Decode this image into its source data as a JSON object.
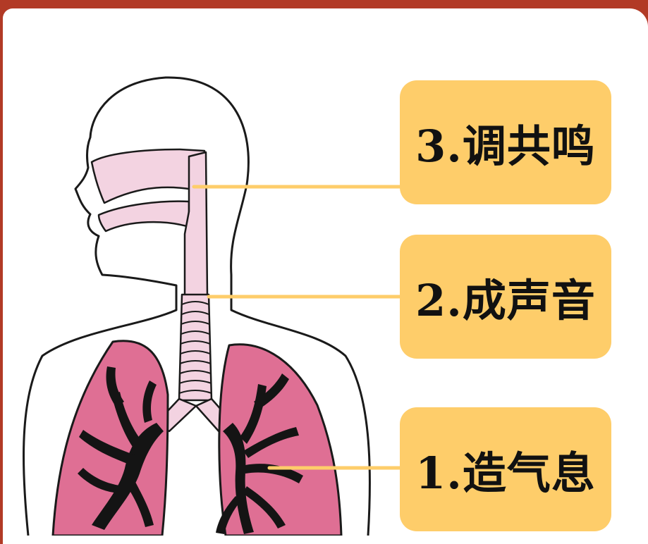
{
  "labels": {
    "resonance": "3.调共鸣",
    "voice": "2.成声音",
    "breath": "1.造气息"
  },
  "colors": {
    "frame": "#b23a26",
    "panel": "#ffffff",
    "label_fill": "#fecd6a",
    "connector": "#fecd6a",
    "airway": "#f3d3e1",
    "lung": "#df6f94",
    "bronchi": "#141414",
    "outline": "#1a1a1a"
  }
}
